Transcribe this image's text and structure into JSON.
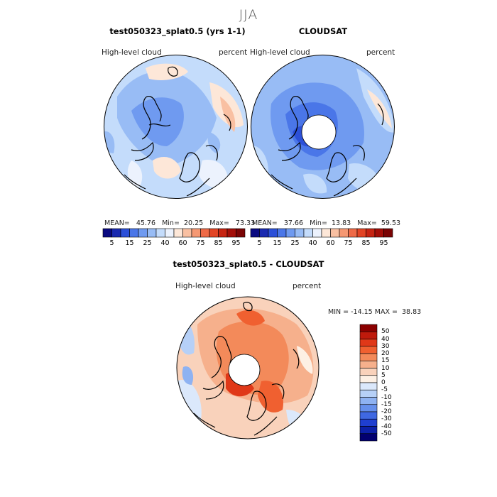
{
  "page": {
    "title": "JJA"
  },
  "panels": {
    "model": {
      "title": "test050323_splat0.5 (yrs 1-1)",
      "variable": "High-level cloud",
      "units": "percent",
      "stats": {
        "mean_label": "MEAN=",
        "mean": "45.76",
        "min_label": "Min=",
        "min": "20.25",
        "max_label": "Max=",
        "max": "73.33"
      }
    },
    "obs": {
      "title": "CLOUDSAT",
      "variable": "High-level cloud",
      "units": "percent",
      "stats": {
        "mean_label": "MEAN=",
        "mean": "37.66",
        "min_label": "Min=",
        "min": "13.83",
        "max_label": "Max=",
        "max": "59.53"
      }
    },
    "diff": {
      "title": "test050323_splat0.5 - CLOUDSAT",
      "variable": "High-level cloud",
      "units": "percent",
      "stats_text": "MIN = -14.15 MAX =  38.83"
    }
  },
  "colorbars": {
    "absolute": {
      "tick_labels": [
        "5",
        "15",
        "25",
        "40",
        "60",
        "75",
        "85",
        "95"
      ],
      "colors": [
        "#0a0a80",
        "#1a2ab0",
        "#2c50d8",
        "#4a76e8",
        "#6f9af0",
        "#98bcf5",
        "#c4dcfb",
        "#ecf2fd",
        "#fde7d8",
        "#f9c0a2",
        "#f59873",
        "#ee6a47",
        "#e24424",
        "#c62412",
        "#a30e08",
        "#7a0404"
      ]
    },
    "difference": {
      "tick_labels": [
        "50",
        "40",
        "30",
        "20",
        "15",
        "10",
        "5",
        "0",
        "-5",
        "-10",
        "-15",
        "-20",
        "-30",
        "-40",
        "-50"
      ],
      "colors": [
        "#8b0000",
        "#bf1a0c",
        "#e03818",
        "#f06030",
        "#f38a5a",
        "#f6b08c",
        "#f9d2bb",
        "#fdf0e4",
        "#dbe8fb",
        "#b6d0f7",
        "#8eb2f2",
        "#6690ec",
        "#3f68e2",
        "#1f3fd0",
        "#0c20a8",
        "#020070"
      ]
    }
  }
}
